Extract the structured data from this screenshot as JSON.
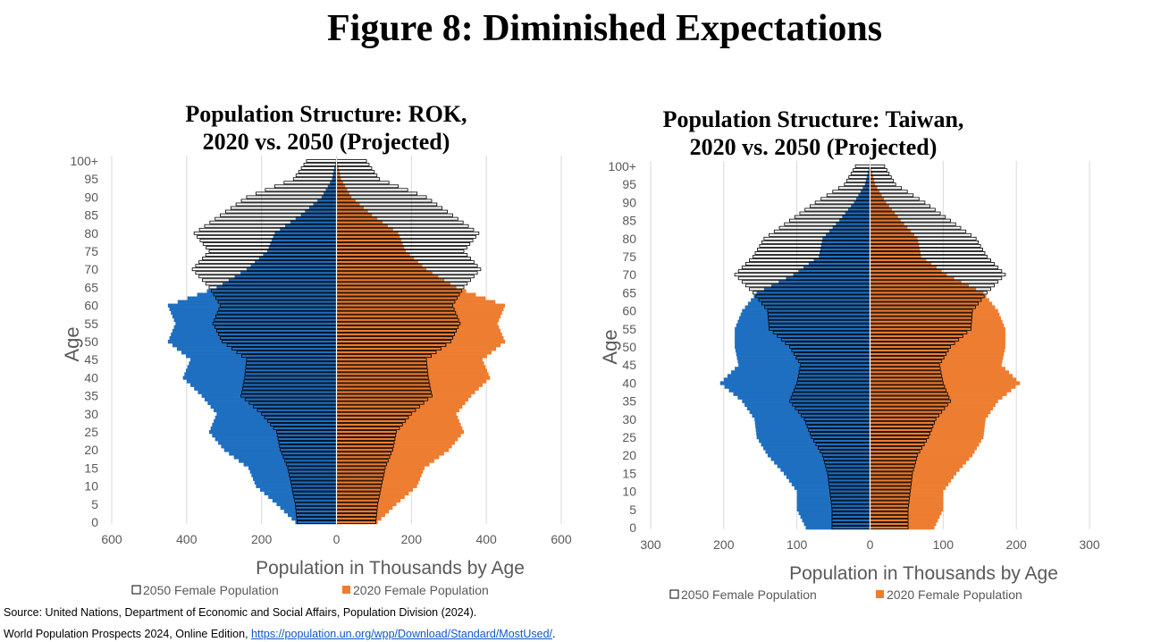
{
  "figure_title": "Figure 8: Diminished Expectations",
  "source_line1": "Source: United Nations, Department of Economic and Social Affairs, Population Division (2024).",
  "source_line2_prefix": "World Population Prospects 2024, Online Edition, ",
  "source_link": "https://population.un.org/wpp/Download/Standard/MostUsed/",
  "source_line2_suffix": ".",
  "colors": {
    "male": "#1f6fc1",
    "female": "#ed7d31",
    "outline": "#000000",
    "grid": "#d9d9d9"
  },
  "chart_data": [
    {
      "type": "bar",
      "title_line1": "Population Structure: ROK,",
      "title_line2": "2020 vs. 2050 (Projected)",
      "xlabel": "Population in Thousands by Age",
      "ylabel": "Age",
      "xlim": [
        -600,
        600
      ],
      "x_ticks": [
        "600",
        "400",
        "200",
        "0",
        "200",
        "400",
        "600"
      ],
      "y_ticks": [
        "0",
        "5",
        "10",
        "15",
        "20",
        "25",
        "30",
        "35",
        "40",
        "45",
        "50",
        "55",
        "60",
        "65",
        "70",
        "75",
        "80",
        "85",
        "90",
        "95",
        "100+"
      ],
      "legend": [
        "2050 Female Population",
        "2020 Female Population"
      ],
      "age_keys": [
        0,
        5,
        10,
        15,
        20,
        25,
        30,
        35,
        40,
        45,
        50,
        55,
        60,
        65,
        70,
        75,
        80,
        85,
        90,
        95,
        100
      ],
      "series": [
        {
          "name": "2020 Female Population",
          "values": [
            110,
            160,
            215,
            235,
            300,
            340,
            320,
            360,
            410,
            390,
            450,
            430,
            450,
            320,
            240,
            185,
            165,
            95,
            40,
            12,
            2
          ]
        },
        {
          "name": "2050 Female Population",
          "values": [
            105,
            110,
            120,
            130,
            150,
            160,
            200,
            255,
            245,
            240,
            305,
            330,
            310,
            340,
            385,
            340,
            380,
            310,
            240,
            115,
            80
          ]
        }
      ]
    },
    {
      "type": "bar",
      "title_line1": "Population Structure: Taiwan,",
      "title_line2": "2020 vs. 2050 (Projected)",
      "xlabel": "Population in Thousands by Age",
      "ylabel": "Age",
      "xlim": [
        -300,
        300
      ],
      "x_ticks": [
        "300",
        "200",
        "100",
        "0",
        "100",
        "200",
        "300"
      ],
      "y_ticks": [
        "0",
        "5",
        "10",
        "15",
        "20",
        "25",
        "30",
        "35",
        "40",
        "45",
        "50",
        "55",
        "60",
        "65",
        "70",
        "75",
        "80",
        "85",
        "90",
        "95",
        "100+"
      ],
      "legend": [
        "2050 Female Population",
        "2020 Female Population"
      ],
      "age_keys": [
        0,
        5,
        10,
        15,
        20,
        25,
        30,
        35,
        40,
        45,
        50,
        55,
        60,
        65,
        70,
        75,
        80,
        85,
        90,
        95,
        100
      ],
      "series": [
        {
          "name": "2020 Female Population",
          "values": [
            88,
            100,
            100,
            118,
            140,
            155,
            158,
            175,
            205,
            180,
            185,
            185,
            175,
            155,
            105,
            70,
            65,
            42,
            22,
            7,
            1
          ]
        },
        {
          "name": "2050 Female Population",
          "values": [
            52,
            52,
            55,
            58,
            65,
            80,
            90,
            110,
            100,
            95,
            110,
            138,
            140,
            160,
            185,
            160,
            145,
            110,
            75,
            35,
            20
          ]
        }
      ]
    }
  ]
}
